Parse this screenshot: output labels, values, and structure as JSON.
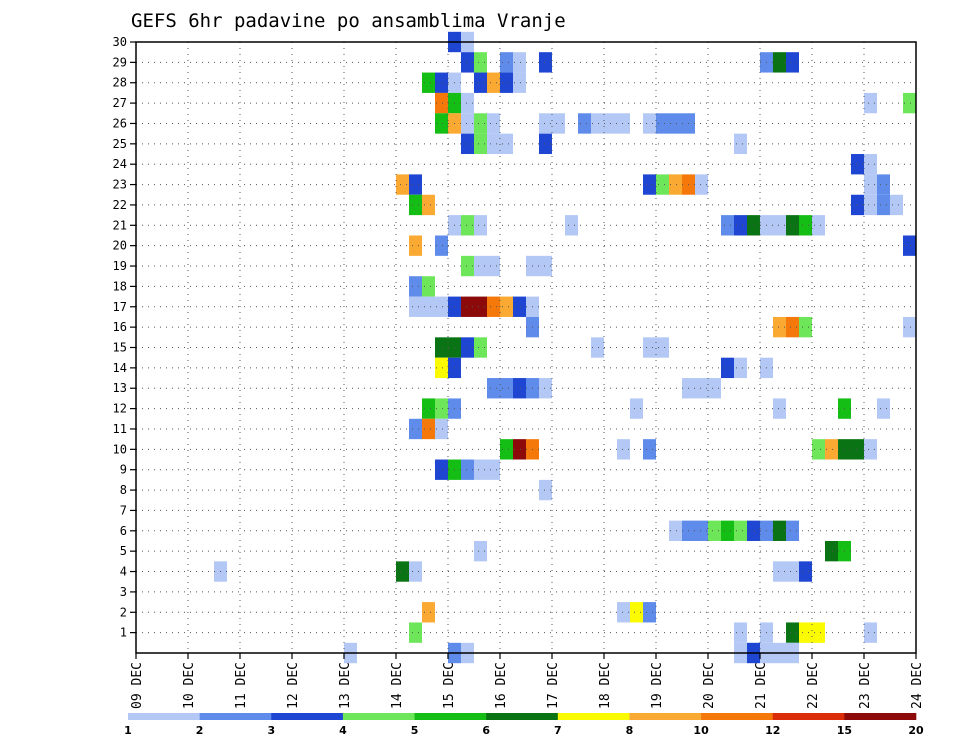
{
  "chart_data": {
    "type": "heatmap",
    "title": "GEFS 6hr padavine po ansamblima Vranje",
    "xlabel": "",
    "ylabel": "",
    "x_ticks": [
      "09 DEC",
      "10 DEC",
      "11 DEC",
      "12 DEC",
      "13 DEC",
      "14 DEC",
      "15 DEC",
      "16 DEC",
      "17 DEC",
      "18 DEC",
      "19 DEC",
      "20 DEC",
      "21 DEC",
      "22 DEC",
      "23 DEC",
      "24 DEC"
    ],
    "x_range_days": [
      0,
      15
    ],
    "x_step_hours": 6,
    "y_ticks": [
      1,
      2,
      3,
      4,
      5,
      6,
      7,
      8,
      9,
      10,
      11,
      12,
      13,
      14,
      15,
      16,
      17,
      18,
      19,
      20,
      21,
      22,
      23,
      24,
      25,
      26,
      27,
      28,
      29,
      30
    ],
    "y_range": [
      0,
      30
    ],
    "grid": true,
    "colorbar": {
      "labels": [
        "1",
        "2",
        "3",
        "4",
        "5",
        "6",
        "7",
        "8",
        "10",
        "12",
        "15",
        "20"
      ],
      "colors": [
        "#b4c8f5",
        "#5f8ceb",
        "#1e46d2",
        "#6ee65a",
        "#14be14",
        "#0a7314",
        "#fafa00",
        "#faaa32",
        "#f5780a",
        "#dc2d0a",
        "#8c0a0a"
      ]
    },
    "cells": [
      [
        30,
        24,
        3
      ],
      [
        30,
        25,
        1
      ],
      [
        29,
        25,
        3
      ],
      [
        29,
        26,
        4
      ],
      [
        29,
        28,
        2
      ],
      [
        29,
        29,
        1
      ],
      [
        29,
        31,
        3
      ],
      [
        29,
        48,
        2
      ],
      [
        29,
        49,
        6
      ],
      [
        29,
        50,
        3
      ],
      [
        28,
        22,
        5
      ],
      [
        28,
        23,
        3
      ],
      [
        28,
        24,
        1
      ],
      [
        28,
        26,
        3
      ],
      [
        28,
        27,
        8
      ],
      [
        28,
        28,
        3
      ],
      [
        28,
        29,
        1
      ],
      [
        27,
        23,
        9
      ],
      [
        27,
        24,
        5
      ],
      [
        27,
        25,
        1
      ],
      [
        27,
        56,
        1
      ],
      [
        27,
        59,
        4
      ],
      [
        26,
        23,
        5
      ],
      [
        26,
        24,
        8
      ],
      [
        26,
        25,
        1
      ],
      [
        26,
        26,
        4
      ],
      [
        26,
        27,
        1
      ],
      [
        26,
        31,
        1
      ],
      [
        26,
        32,
        1
      ],
      [
        26,
        34,
        2
      ],
      [
        26,
        35,
        1
      ],
      [
        26,
        36,
        1
      ],
      [
        26,
        37,
        1
      ],
      [
        26,
        39,
        1
      ],
      [
        26,
        40,
        2
      ],
      [
        26,
        41,
        2
      ],
      [
        26,
        42,
        2
      ],
      [
        25,
        25,
        3
      ],
      [
        25,
        26,
        4
      ],
      [
        25,
        27,
        1
      ],
      [
        25,
        28,
        1
      ],
      [
        25,
        31,
        3
      ],
      [
        25,
        46,
        1
      ],
      [
        24,
        55,
        3
      ],
      [
        24,
        56,
        1
      ],
      [
        23,
        20,
        8
      ],
      [
        23,
        21,
        3
      ],
      [
        23,
        39,
        3
      ],
      [
        23,
        40,
        4
      ],
      [
        23,
        41,
        8
      ],
      [
        23,
        42,
        9
      ],
      [
        23,
        43,
        1
      ],
      [
        23,
        56,
        1
      ],
      [
        23,
        57,
        2
      ],
      [
        22,
        21,
        5
      ],
      [
        22,
        22,
        8
      ],
      [
        22,
        55,
        3
      ],
      [
        22,
        56,
        1
      ],
      [
        22,
        57,
        2
      ],
      [
        22,
        58,
        1
      ],
      [
        21,
        24,
        1
      ],
      [
        21,
        25,
        4
      ],
      [
        21,
        26,
        1
      ],
      [
        21,
        33,
        1
      ],
      [
        21,
        45,
        2
      ],
      [
        21,
        46,
        3
      ],
      [
        21,
        47,
        6
      ],
      [
        21,
        48,
        1
      ],
      [
        21,
        49,
        1
      ],
      [
        21,
        50,
        6
      ],
      [
        21,
        51,
        5
      ],
      [
        21,
        52,
        1
      ],
      [
        20,
        21,
        8
      ],
      [
        20,
        23,
        2
      ],
      [
        20,
        59,
        3
      ],
      [
        20,
        60,
        6
      ],
      [
        19,
        25,
        4
      ],
      [
        19,
        26,
        1
      ],
      [
        19,
        27,
        1
      ],
      [
        19,
        30,
        1
      ],
      [
        19,
        31,
        1
      ],
      [
        18,
        21,
        2
      ],
      [
        18,
        22,
        4
      ],
      [
        17,
        21,
        1
      ],
      [
        17,
        22,
        1
      ],
      [
        17,
        23,
        1
      ],
      [
        17,
        24,
        3
      ],
      [
        17,
        25,
        11
      ],
      [
        17,
        26,
        11
      ],
      [
        17,
        27,
        9
      ],
      [
        17,
        28,
        8
      ],
      [
        17,
        29,
        3
      ],
      [
        17,
        30,
        1
      ],
      [
        16,
        30,
        2
      ],
      [
        16,
        49,
        8
      ],
      [
        16,
        50,
        9
      ],
      [
        16,
        51,
        4
      ],
      [
        16,
        59,
        1
      ],
      [
        16,
        60,
        4
      ],
      [
        15,
        23,
        6
      ],
      [
        15,
        24,
        6
      ],
      [
        15,
        25,
        3
      ],
      [
        15,
        26,
        4
      ],
      [
        15,
        35,
        1
      ],
      [
        15,
        39,
        1
      ],
      [
        15,
        40,
        1
      ],
      [
        14,
        23,
        7
      ],
      [
        14,
        24,
        3
      ],
      [
        14,
        45,
        3
      ],
      [
        14,
        46,
        1
      ],
      [
        14,
        48,
        1
      ],
      [
        13,
        27,
        2
      ],
      [
        13,
        28,
        2
      ],
      [
        13,
        29,
        3
      ],
      [
        13,
        30,
        2
      ],
      [
        13,
        31,
        1
      ],
      [
        13,
        42,
        1
      ],
      [
        13,
        43,
        1
      ],
      [
        13,
        44,
        1
      ],
      [
        13,
        60,
        3
      ],
      [
        12,
        22,
        5
      ],
      [
        12,
        23,
        4
      ],
      [
        12,
        24,
        2
      ],
      [
        12,
        38,
        1
      ],
      [
        12,
        49,
        1
      ],
      [
        12,
        54,
        5
      ],
      [
        12,
        57,
        1
      ],
      [
        11,
        21,
        2
      ],
      [
        11,
        22,
        9
      ],
      [
        11,
        23,
        1
      ],
      [
        10,
        28,
        5
      ],
      [
        10,
        29,
        11
      ],
      [
        10,
        30,
        9
      ],
      [
        10,
        37,
        1
      ],
      [
        10,
        39,
        2
      ],
      [
        10,
        52,
        4
      ],
      [
        10,
        53,
        8
      ],
      [
        10,
        54,
        6
      ],
      [
        10,
        55,
        6
      ],
      [
        10,
        56,
        1
      ],
      [
        9,
        23,
        3
      ],
      [
        9,
        24,
        5
      ],
      [
        9,
        25,
        2
      ],
      [
        9,
        26,
        1
      ],
      [
        9,
        27,
        1
      ],
      [
        8,
        31,
        1
      ],
      [
        6,
        41,
        1
      ],
      [
        6,
        42,
        2
      ],
      [
        6,
        43,
        2
      ],
      [
        6,
        44,
        4
      ],
      [
        6,
        45,
        5
      ],
      [
        6,
        46,
        4
      ],
      [
        6,
        47,
        3
      ],
      [
        6,
        48,
        2
      ],
      [
        6,
        49,
        6
      ],
      [
        6,
        50,
        2
      ],
      [
        5,
        26,
        1
      ],
      [
        5,
        53,
        6
      ],
      [
        5,
        54,
        5
      ],
      [
        4,
        6,
        1
      ],
      [
        4,
        20,
        6
      ],
      [
        4,
        21,
        1
      ],
      [
        4,
        49,
        1
      ],
      [
        4,
        50,
        1
      ],
      [
        4,
        51,
        3
      ],
      [
        2,
        22,
        8
      ],
      [
        2,
        37,
        1
      ],
      [
        2,
        38,
        7
      ],
      [
        2,
        39,
        2
      ],
      [
        1,
        21,
        4
      ],
      [
        1,
        46,
        1
      ],
      [
        1,
        48,
        1
      ],
      [
        1,
        50,
        6
      ],
      [
        1,
        51,
        7
      ],
      [
        1,
        52,
        7
      ],
      [
        1,
        56,
        1
      ],
      [
        0,
        16,
        1
      ],
      [
        0,
        24,
        2
      ],
      [
        0,
        25,
        1
      ],
      [
        0,
        46,
        1
      ],
      [
        0,
        47,
        3
      ],
      [
        0,
        48,
        1
      ],
      [
        0,
        49,
        1
      ],
      [
        0,
        50,
        1
      ]
    ]
  }
}
